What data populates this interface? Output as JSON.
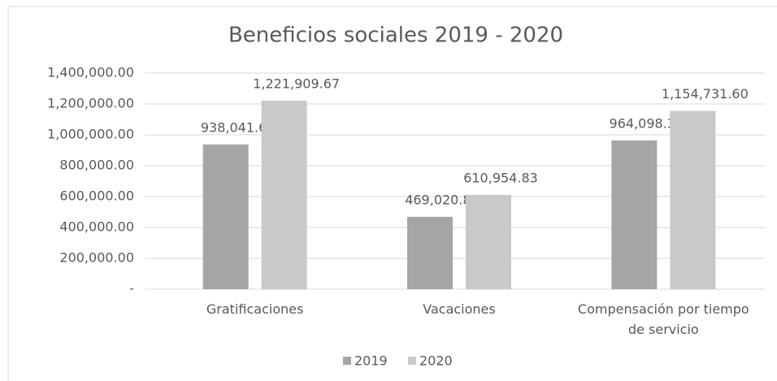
{
  "chart_data": {
    "type": "bar",
    "title": "Beneficios sociales 2019 - 2020",
    "categories": [
      "Gratificaciones",
      "Vacaciones",
      "Compensación por tiempo de servicio"
    ],
    "series": [
      {
        "name": "2019",
        "color": "#a5a5a5",
        "values": [
          938041.67,
          469020.83,
          964098.38
        ],
        "value_labels": [
          "938,041.67",
          "469,020.83",
          "964,098.38"
        ]
      },
      {
        "name": "2020",
        "color": "#c9c9c9",
        "values": [
          1221909.67,
          610954.83,
          1154731.6
        ],
        "value_labels": [
          "1,221,909.67",
          "610,954.83",
          "1,154,731.60"
        ]
      }
    ],
    "ylim": [
      0,
      1400000
    ],
    "yticks": [
      {
        "value": 0,
        "label": "-"
      },
      {
        "value": 200000,
        "label": "200,000.00"
      },
      {
        "value": 400000,
        "label": "400,000.00"
      },
      {
        "value": 600000,
        "label": "600,000.00"
      },
      {
        "value": 800000,
        "label": "800,000.00"
      },
      {
        "value": 1000000,
        "label": "1,000,000.00"
      },
      {
        "value": 1200000,
        "label": "1,200,000.00"
      },
      {
        "value": 1400000,
        "label": "1,400,000.00"
      }
    ],
    "grid": true,
    "legend": "bottom"
  }
}
